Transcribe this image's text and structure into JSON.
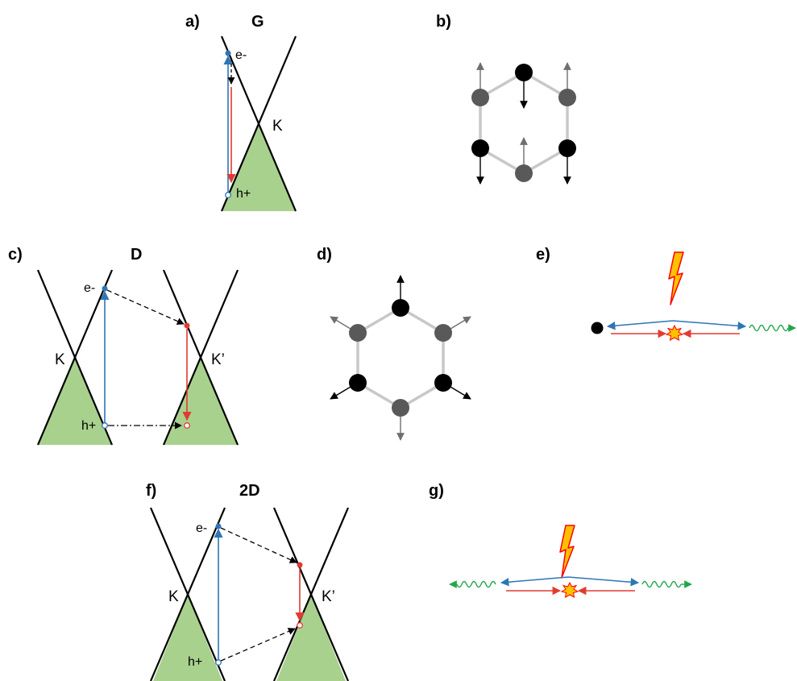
{
  "panels": {
    "a": {
      "label": "a)",
      "title": "G",
      "k": "K",
      "electron": "e-",
      "hole": "h+"
    },
    "b": {
      "label": "b)"
    },
    "c": {
      "label": "c)",
      "title": "D",
      "k1": "K",
      "k2": "K’",
      "electron": "e-",
      "hole": "h+"
    },
    "d": {
      "label": "d)"
    },
    "e": {
      "label": "e)"
    },
    "f": {
      "label": "f)",
      "title": "2D",
      "k1": "K",
      "k2": "K’",
      "electron": "e-",
      "hole": "h+"
    },
    "g": {
      "label": "g)"
    }
  },
  "colors": {
    "cone_fill": "#a9d18e",
    "excitation_arrow": "#2e75b6",
    "recombination_arrow": "#e03c31",
    "phonon": "#22a84a",
    "atom_black": "#000000",
    "atom_gray": "#595959",
    "bond": "#c8c8c8",
    "lightning_fill": "#ffc000",
    "lightning_stroke": "#ff0000",
    "burst_fill": "#ffc000"
  },
  "icons": [
    "lightning-bolt-icon",
    "burst-icon",
    "phonon-wave-icon"
  ]
}
